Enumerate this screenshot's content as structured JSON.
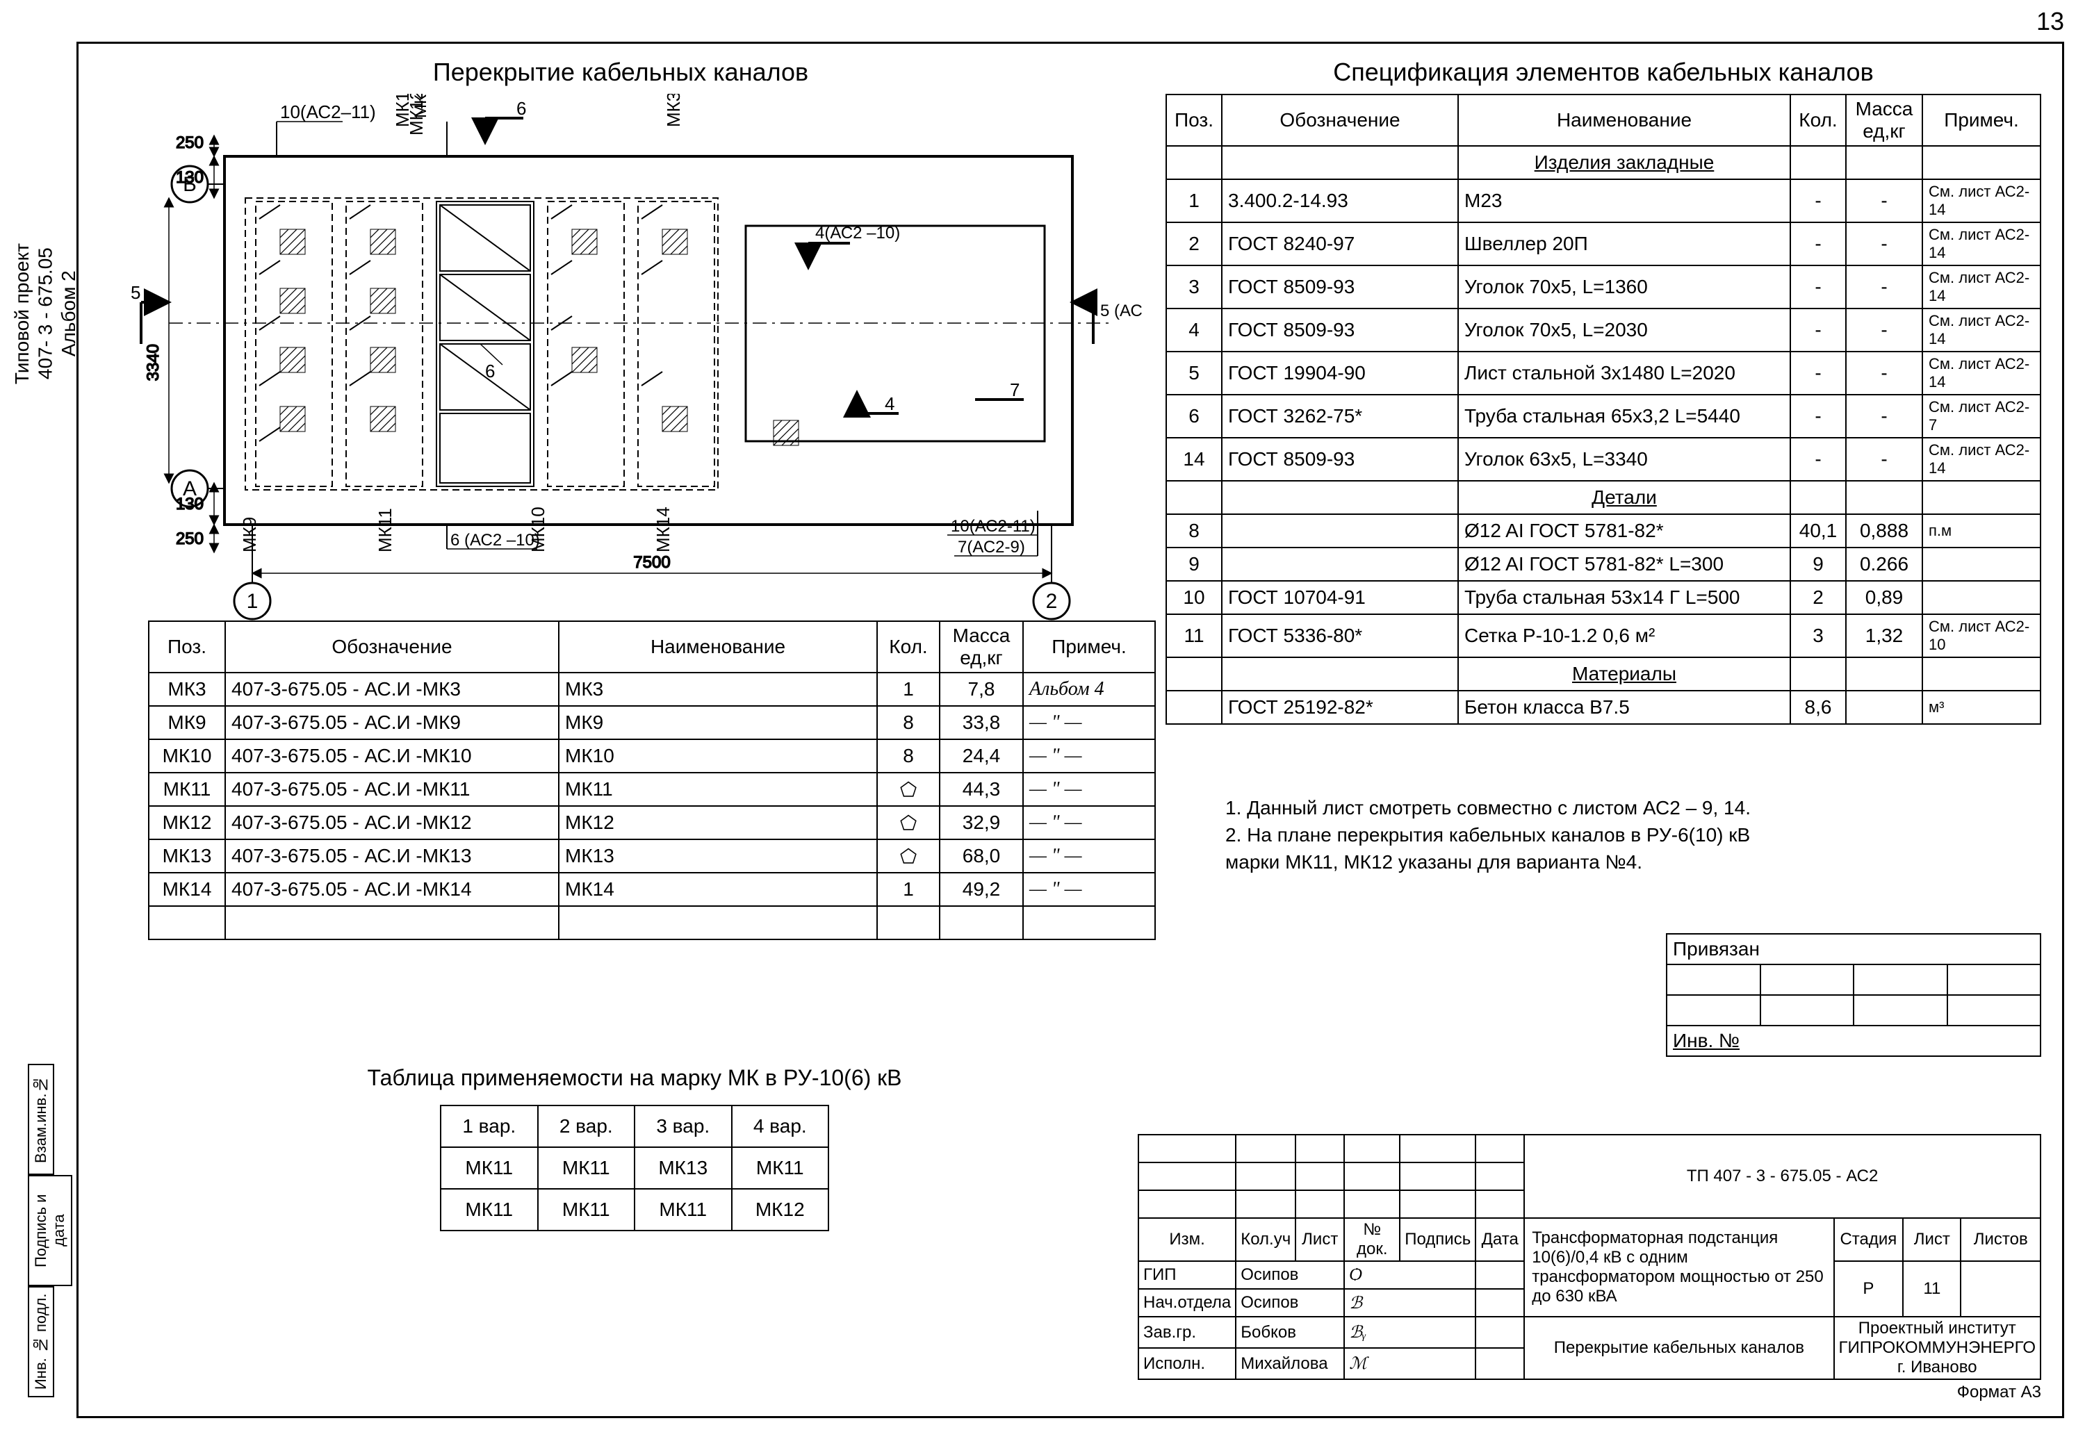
{
  "page_number": "13",
  "sidebar": {
    "project_label": "Типовой проект",
    "code": "407- 3 - 675.05",
    "album": "Альбом 2"
  },
  "bind_cells": [
    "Взам.инв.№",
    "Подпись и дата",
    "Инв. № подл."
  ],
  "plan": {
    "title": "Перекрытие кабельных каналов",
    "dims": {
      "top_250": "250",
      "v_130a": "130",
      "v_3340": "3340",
      "v_130b": "130",
      "bot_250": "250",
      "w_7500": "7500"
    },
    "axis_labels": {
      "A": "А",
      "B": "Б",
      "one": "1",
      "two": "2"
    },
    "callouts": {
      "c10": "10(АС2–11)",
      "mk12": "МК12",
      "c6": "6",
      "mk3": "МК3",
      "sec5l": "5",
      "sec5r": "5 (АС2-10)",
      "sec4": "4(АС2 –10)",
      "sec4b": "4",
      "sec7": "7",
      "mk9": "МК9",
      "mk11": "МК11",
      "c6b": "6 (АС2 –10)",
      "mk10": "МК10",
      "mk14": "МК14",
      "c10b": "10(АС2-11)",
      "c7b": "7(АС2-9)",
      "c_inner6": "6"
    }
  },
  "spec": {
    "title": "Спецификация элементов кабельных каналов",
    "headers": [
      "Поз.",
      "Обозначение",
      "Наименование",
      "Кол.",
      "Масса ед,кг",
      "Примеч."
    ],
    "section1": "Изделия закладные",
    "rows1": [
      {
        "p": "1",
        "o": "3.400.2-14.93",
        "n": "М23",
        "k": "-",
        "m": "-",
        "pr": "См. лист АС2-14"
      },
      {
        "p": "2",
        "o": "ГОСТ 8240-97",
        "n": "Швеллер 20П",
        "k": "-",
        "m": "-",
        "pr": "См. лист АС2-14"
      },
      {
        "p": "3",
        "o": "ГОСТ 8509-93",
        "n": "Уголок 70х5, L=1360",
        "k": "-",
        "m": "-",
        "pr": "См. лист АС2-14"
      },
      {
        "p": "4",
        "o": "ГОСТ 8509-93",
        "n": "Уголок 70х5, L=2030",
        "k": "-",
        "m": "-",
        "pr": "См. лист АС2-14"
      },
      {
        "p": "5",
        "o": "ГОСТ 19904-90",
        "n": "Лист стальной 3х1480   L=2020",
        "k": "-",
        "m": "-",
        "pr": "См. лист АС2-14"
      },
      {
        "p": "6",
        "o": "ГОСТ 3262-75*",
        "n": "Труба стальная 65х3,2   L=5440",
        "k": "-",
        "m": "-",
        "pr": "См. лист АС2-7"
      },
      {
        "p": "14",
        "o": "ГОСТ 8509-93",
        "n": "Уголок 63х5, L=3340",
        "k": "-",
        "m": "-",
        "pr": "См. лист АС2-14"
      }
    ],
    "section2": "Детали",
    "rows2": [
      {
        "p": "8",
        "o": "",
        "n": "Ø12 AI ГОСТ 5781-82*",
        "k": "40,1",
        "m": "0,888",
        "pr": "п.м"
      },
      {
        "p": "9",
        "o": "",
        "n": "Ø12 AI ГОСТ 5781-82* L=300",
        "k": "9",
        "m": "0.266",
        "pr": ""
      },
      {
        "p": "10",
        "o": "ГОСТ 10704-91",
        "n": "Труба стальная 53х14 Г   L=500",
        "k": "2",
        "m": "0,89",
        "pr": ""
      },
      {
        "p": "11",
        "o": "ГОСТ 5336-80*",
        "n": "Сетка Р-10-1.2            0,6 м²",
        "k": "3",
        "m": "1,32",
        "pr": "См. лист АС2-10"
      }
    ],
    "section3": "Материалы",
    "rows3": [
      {
        "p": "",
        "o": "ГОСТ 25192-82*",
        "n": "Бетон класса В7.5",
        "k": "8,6",
        "m": "",
        "pr": "м³"
      }
    ]
  },
  "mk": {
    "headers": [
      "Поз.",
      "Обозначение",
      "Наименование",
      "Кол.",
      "Масса ед,кг",
      "Примеч."
    ],
    "rows": [
      {
        "p": "МК3",
        "o": "407-3-675.05 - АС.И -МК3",
        "n": "МК3",
        "k": "1",
        "m": "7,8",
        "pr": "Альбом 4"
      },
      {
        "p": "МК9",
        "o": "407-3-675.05 - АС.И -МК9",
        "n": "МК9",
        "k": "8",
        "m": "33,8",
        "pr": "— ʺ —"
      },
      {
        "p": "МК10",
        "o": "407-3-675.05 - АС.И -МК10",
        "n": "МК10",
        "k": "8",
        "m": "24,4",
        "pr": "— ʺ —"
      },
      {
        "p": "МК11",
        "o": "407-3-675.05 - АС.И -МК11",
        "n": "МК11",
        "k": "⬠",
        "m": "44,3",
        "pr": "— ʺ —"
      },
      {
        "p": "МК12",
        "o": "407-3-675.05 - АС.И -МК12",
        "n": "МК12",
        "k": "⬠",
        "m": "32,9",
        "pr": "— ʺ —"
      },
      {
        "p": "МК13",
        "o": "407-3-675.05 - АС.И -МК13",
        "n": "МК13",
        "k": "⬠",
        "m": "68,0",
        "pr": "— ʺ —"
      },
      {
        "p": "МК14",
        "o": "407-3-675.05 - АС.И -МК14",
        "n": "МК14",
        "k": "1",
        "m": "49,2",
        "pr": "— ʺ —"
      }
    ]
  },
  "notes": {
    "n1": "1. Данный лист смотреть совместно с листом  АС2 – 9, 14.",
    "n2": "2. На плане перекрытия кабельных каналов в РУ-6(10) кВ",
    "n2b": "   марки МК11, МК12 указаны для варианта №4."
  },
  "appl": {
    "title": "Таблица применяемости на марку МК в РУ-10(6) кВ",
    "headers": [
      "1 вар.",
      "2 вар.",
      "3 вар.",
      "4 вар."
    ],
    "rows": [
      [
        "МК11",
        "МК11",
        "МК13",
        "МК11"
      ],
      [
        "МК11",
        "МК11",
        "МК11",
        "МК12"
      ]
    ]
  },
  "priv": {
    "title": "Привязан",
    "inv": "Инв. №"
  },
  "titleblock": {
    "doc_code": "ТП   407 - 3 - 675.05 - АС2",
    "rev_headers": [
      "Изм.",
      "Кол.уч",
      "Лист",
      "№ док.",
      "Подпись",
      "Дата"
    ],
    "roles": [
      {
        "r": "ГИП",
        "n": "Осипов"
      },
      {
        "r": "Нач.отдела",
        "n": "Осипов"
      },
      {
        "r": "Зав.гр.",
        "n": "Бобков"
      },
      {
        "r": "Исполн.",
        "n": "Михайлова"
      }
    ],
    "desc1": "Трансформаторная подстанция 10(6)/0,4 кВ с одним трансформатором мощностью от 250 до 630 кВА",
    "desc2": "Перекрытие кабельных каналов",
    "stage_h": "Стадия",
    "sheet_h": "Лист",
    "sheets_h": "Листов",
    "stage": "Р",
    "sheet": "11",
    "sheets": "",
    "org": "Проектный институт ГИПРОКОММУНЭНЕРГО г. Иваново",
    "format": "Формат А3"
  }
}
